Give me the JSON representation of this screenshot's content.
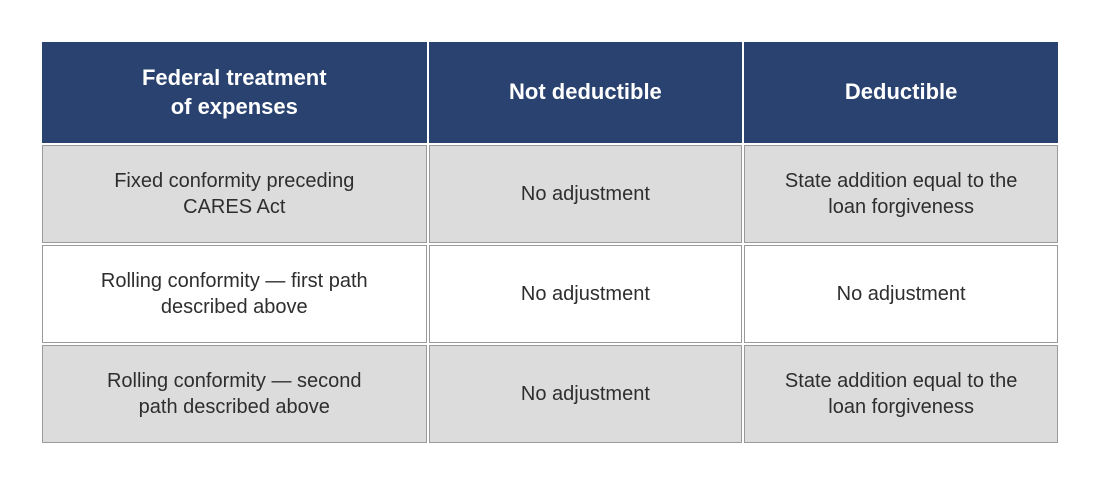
{
  "table": {
    "type": "table",
    "header_bg": "#2a4270",
    "header_text_color": "#ffffff",
    "row_shaded_bg": "#dcdcdc",
    "row_plain_bg": "#ffffff",
    "cell_border_color": "#9a9a9a",
    "text_color": "#2e2e2e",
    "header_fontsize": 22,
    "cell_fontsize": 20,
    "columns": [
      {
        "label_line1": "Federal treatment",
        "label_line2": "of expenses",
        "width_pct": 38
      },
      {
        "label_line1": "Not deductible",
        "label_line2": "",
        "width_pct": 31
      },
      {
        "label_line1": "Deductible",
        "label_line2": "",
        "width_pct": 31
      }
    ],
    "rows": [
      {
        "shaded": true,
        "cells": [
          {
            "line1": "Fixed conformity preceding",
            "line2": "CARES Act"
          },
          {
            "line1": "No adjustment",
            "line2": ""
          },
          {
            "line1": "State addition equal to the",
            "line2": "loan forgiveness"
          }
        ]
      },
      {
        "shaded": false,
        "cells": [
          {
            "line1": "Rolling conformity — first path",
            "line2": "described above"
          },
          {
            "line1": "No adjustment",
            "line2": ""
          },
          {
            "line1": "No adjustment",
            "line2": ""
          }
        ]
      },
      {
        "shaded": true,
        "cells": [
          {
            "line1": "Rolling conformity — second",
            "line2": "path described above"
          },
          {
            "line1": "No adjustment",
            "line2": ""
          },
          {
            "line1": "State addition equal to the",
            "line2": "loan forgiveness"
          }
        ]
      }
    ]
  }
}
